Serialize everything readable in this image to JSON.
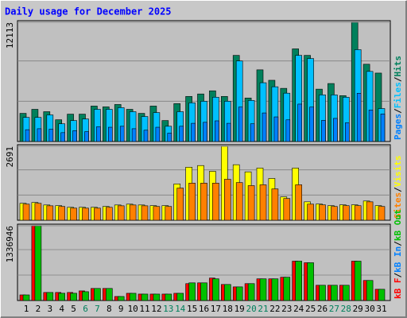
{
  "chart_data": [
    {
      "type": "bar",
      "title": "Daily usage for December 2025",
      "title_color": "#0000ff",
      "legend_separator": "/",
      "series": [
        {
          "name": "Pages",
          "color": "#0080ff",
          "values": [
            1200,
            1300,
            1250,
            900,
            1100,
            1000,
            1500,
            1450,
            1550,
            1300,
            1150,
            1450,
            850,
            1550,
            1850,
            1950,
            2100,
            1850,
            3500,
            1800,
            2900,
            2500,
            2200,
            3800,
            3500,
            2150,
            2350,
            1900,
            4900,
            3200,
            2800
          ]
        },
        {
          "name": "Files",
          "color": "#00c0ff",
          "values": [
            2450,
            2450,
            2700,
            1800,
            2130,
            2290,
            3270,
            3270,
            3440,
            3030,
            2540,
            2940,
            1550,
            3030,
            3930,
            4090,
            4500,
            4090,
            8180,
            4170,
            5970,
            5560,
            4910,
            8750,
            8430,
            4740,
            4740,
            4500,
            9330,
            7120,
            3350
          ]
        },
        {
          "name": "Hits",
          "color": "#00805c",
          "values": [
            2860,
            3270,
            3030,
            2210,
            2780,
            2780,
            3600,
            3520,
            3760,
            3270,
            2860,
            3600,
            2130,
            3850,
            4580,
            4830,
            5150,
            4580,
            8750,
            4420,
            7280,
            6220,
            5400,
            9410,
            8750,
            5320,
            5890,
            4660,
            12113,
            7850,
            6950
          ]
        }
      ],
      "ylim": [
        0,
        12113
      ],
      "yticks": [
        12113
      ]
    },
    {
      "type": "bar",
      "legend_separator": "/",
      "series": [
        {
          "name": "Sites",
          "color": "#ff8000",
          "values": [
            585,
            615,
            525,
            500,
            440,
            440,
            440,
            470,
            525,
            555,
            525,
            500,
            500,
            1170,
            1350,
            1350,
            1350,
            1490,
            1370,
            1260,
            1290,
            1140,
            790,
            1290,
            585,
            560,
            500,
            530,
            530,
            670,
            500
          ]
        },
        {
          "name": "Visits",
          "color": "#ffff00",
          "values": [
            615,
            645,
            555,
            530,
            470,
            470,
            470,
            500,
            555,
            585,
            555,
            530,
            530,
            1320,
            1930,
            1990,
            1780,
            2691,
            2020,
            1760,
            1900,
            1520,
            850,
            1900,
            670,
            590,
            530,
            560,
            560,
            700,
            530
          ]
        }
      ],
      "ylim": [
        0,
        2691
      ],
      "yticks": [
        2691
      ]
    },
    {
      "type": "bar",
      "legend_separator": "/",
      "series": [
        {
          "name": "kB F",
          "color": "#ff0000",
          "values": [
            100000,
            1336946,
            144000,
            144000,
            144000,
            172000,
            216000,
            216000,
            72000,
            129000,
            115000,
            115000,
            115000,
            129000,
            302000,
            316000,
            402000,
            287000,
            244000,
            302000,
            388000,
            388000,
            417000,
            704000,
            676000,
            273000,
            273000,
            273000,
            704000,
            359000,
            201000
          ]
        },
        {
          "name": "kB In",
          "color": "#0080ff",
          "values": [
            0,
            0,
            0,
            0,
            0,
            0,
            0,
            0,
            0,
            0,
            0,
            0,
            0,
            0,
            0,
            0,
            0,
            0,
            0,
            0,
            0,
            0,
            0,
            0,
            0,
            0,
            0,
            0,
            0,
            0,
            0
          ]
        },
        {
          "name": "kB Out",
          "color": "#00c000",
          "values": [
            100000,
            1336946,
            144000,
            130000,
            130000,
            158000,
            216000,
            216000,
            72000,
            129000,
            115000,
            115000,
            115000,
            129000,
            316000,
            316000,
            388000,
            287000,
            244000,
            302000,
            388000,
            388000,
            417000,
            704000,
            676000,
            273000,
            273000,
            273000,
            704000,
            359000,
            201000
          ]
        }
      ],
      "ylim": [
        0,
        1336946
      ],
      "yticks": [
        1336946
      ],
      "categories": [
        "1",
        "2",
        "3",
        "4",
        "5",
        "6",
        "7",
        "8",
        "9",
        "10",
        "11",
        "12",
        "13",
        "14",
        "15",
        "16",
        "17",
        "18",
        "19",
        "20",
        "21",
        "22",
        "23",
        "24",
        "25",
        "26",
        "27",
        "28",
        "29",
        "30",
        "31"
      ],
      "category_colors": [
        "#000000",
        "#000000",
        "#000000",
        "#000000",
        "#000000",
        "#00805c",
        "#00805c",
        "#000000",
        "#000000",
        "#000000",
        "#000000",
        "#000000",
        "#00805c",
        "#00805c",
        "#000000",
        "#000000",
        "#000000",
        "#000000",
        "#000000",
        "#00805c",
        "#00805c",
        "#000000",
        "#000000",
        "#000000",
        "#000000",
        "#000000",
        "#00805c",
        "#00805c",
        "#000000",
        "#000000",
        "#000000"
      ]
    }
  ]
}
